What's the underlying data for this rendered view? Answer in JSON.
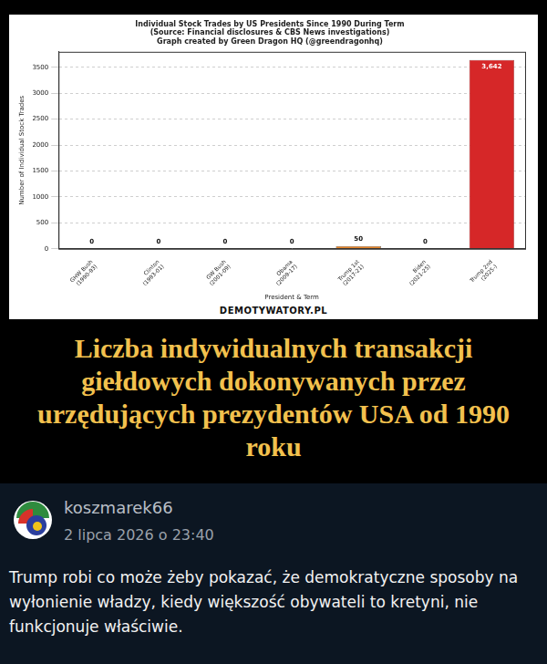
{
  "chart_data": {
    "type": "bar",
    "title": [
      "Individual Stock Trades by US Presidents Since 1990 During Term",
      "(Source: Financial disclosures & CBS News investigations)",
      "Graph created by Green Dragon HQ (@greendragonhq)"
    ],
    "x_label": "President & Term",
    "y_label": "Number of Individual Stock Trades",
    "categories": [
      "GHW Bush (1990-93)",
      "Clinton (1993-01)",
      "GW Bush (2001-09)",
      "Obama (2009-17)",
      "Trump 1st (2017-21)",
      "Biden (2021-25)",
      "Trump 2nd (2025-)"
    ],
    "values": [
      0,
      0,
      0,
      0,
      50,
      0,
      3642
    ],
    "value_labels": [
      "0",
      "0",
      "0",
      "0",
      "50",
      "0",
      "3,642"
    ],
    "colors": [
      "#808080",
      "#808080",
      "#808080",
      "#808080",
      "#e8862a",
      "#808080",
      "#d62728"
    ],
    "ylim": [
      0,
      3800
    ],
    "yticks": [
      0,
      500,
      1000,
      1500,
      2000,
      2500,
      3000,
      3500
    ],
    "grid": true,
    "data_labels": true
  },
  "watermark": "DEMOTYWATORY.PL",
  "caption": "Liczba indywidualnych transakcji giełdowych dokonywanych przez urzędujących prezydentów USA od 1990 roku",
  "comment": {
    "user": "koszmarek66",
    "date": "2 lipca 2026 o 23:40",
    "text": "Trump robi co może żeby pokazać, że demokratyczne sposoby na wyłonienie władzy, kiedy większość obywateli to kretyni, nie funkcjonuje właściwie."
  }
}
